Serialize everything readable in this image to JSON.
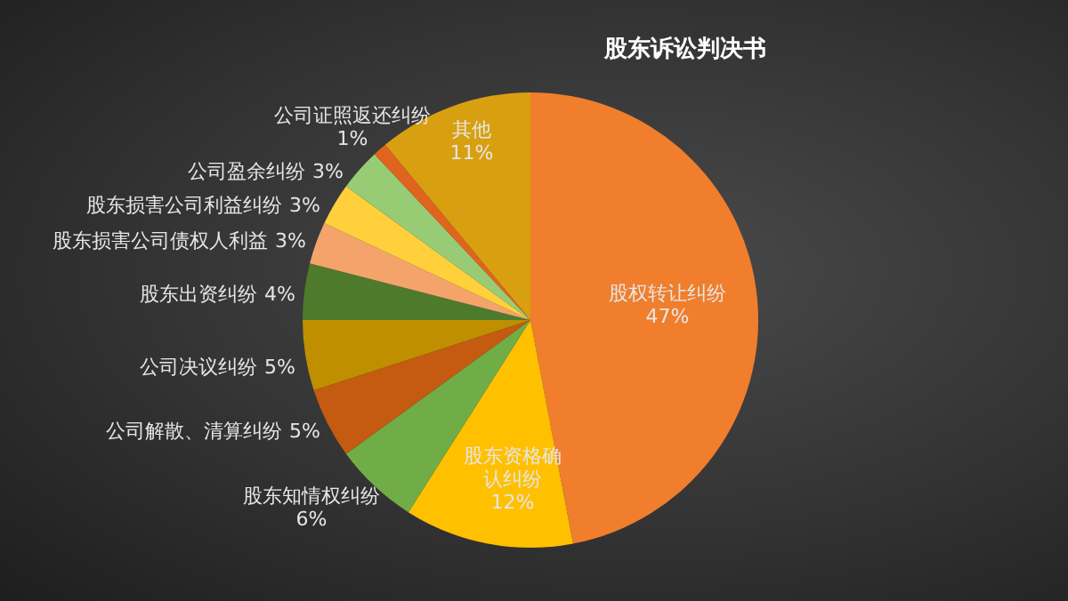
{
  "chart_data": {
    "type": "pie",
    "title": "股东诉讼判决书",
    "categories": [
      "股权转让纠纷",
      "股东资格确认纠纷",
      "股东知情权纠纷",
      "公司解散、清算纠纷",
      "公司决议纠纷",
      "股东出资纠纷",
      "股东损害公司债权人利益",
      "股东损害公司利益纠纷",
      "公司盈余纠纷",
      "公司证照返还纠纷",
      "其他"
    ],
    "values": [
      47,
      12,
      6,
      5,
      5,
      4,
      3,
      3,
      3,
      1,
      11
    ],
    "value_labels": [
      "47%",
      "12%",
      "6%",
      "5%",
      "5%",
      "4%",
      "3%",
      "3%",
      "3%",
      "1%",
      "11%"
    ],
    "colors": [
      "#f07e2c",
      "#ffc000",
      "#70ad47",
      "#c55a11",
      "#bf8f00",
      "#4e7a2c",
      "#f4a46a",
      "#ffd03c",
      "#98cc74",
      "#e0641e",
      "#d8a010"
    ],
    "legend": false
  }
}
